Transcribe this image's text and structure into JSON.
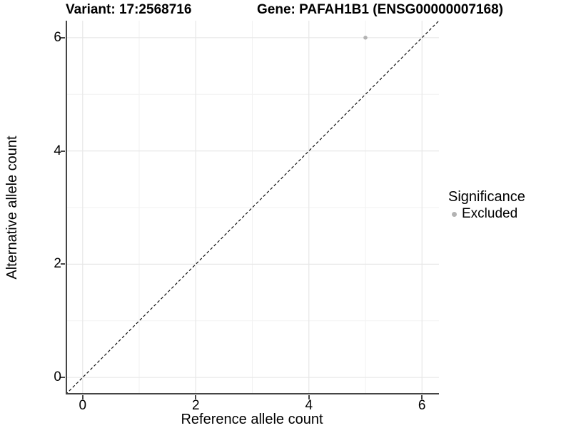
{
  "header": {
    "variant_title": "Variant: 17:2568716",
    "gene_title": "Gene: PAFAH1B1 (ENSG00000007168)"
  },
  "axes": {
    "x_label": "Reference allele count",
    "y_label": "Alternative allele count"
  },
  "legend": {
    "title": "Significance",
    "items": [
      {
        "label": "Excluded",
        "color": "#b3b3b3"
      }
    ]
  },
  "colors": {
    "background": "#ffffff",
    "axis_line": "#454545",
    "major_grid": "#e7e7e7",
    "minor_grid": "#f2f2f2",
    "identity_line": "#111111",
    "point": "#b3b3b3",
    "text": "#000000"
  },
  "chart_data": {
    "type": "scatter",
    "title_left": "Variant: 17:2568716",
    "title_right": "Gene: PAFAH1B1 (ENSG00000007168)",
    "xlabel": "Reference allele count",
    "ylabel": "Alternative allele count",
    "xlim": [
      -0.3,
      6.3
    ],
    "ylim": [
      -0.3,
      6.3
    ],
    "x_major_ticks": [
      0,
      2,
      4,
      6
    ],
    "x_minor_ticks": [
      1,
      3,
      5
    ],
    "y_major_ticks": [
      0,
      2,
      4,
      6
    ],
    "y_minor_ticks": [
      1,
      3,
      5
    ],
    "grid": true,
    "identity_line": {
      "style": "dashed",
      "from": [
        -0.3,
        -0.3
      ],
      "to": [
        6.3,
        6.3
      ]
    },
    "series": [
      {
        "name": "Excluded",
        "color": "#b3b3b3",
        "points": [
          {
            "x": 5,
            "y": 6
          }
        ]
      }
    ],
    "legend_position": "right"
  }
}
